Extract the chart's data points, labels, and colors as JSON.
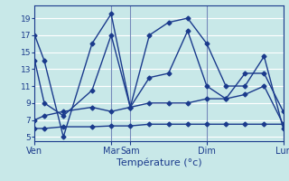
{
  "background_color": "#c8e8e8",
  "grid_color": "#ffffff",
  "line_color": "#1a3a8c",
  "xlabel": "Température (°c)",
  "yticks": [
    5,
    7,
    9,
    11,
    13,
    15,
    17,
    19
  ],
  "xtick_labels": [
    "Ven",
    "Mar",
    "Sam",
    "Dim",
    "Lun"
  ],
  "xtick_positions": [
    0,
    24,
    30,
    54,
    78
  ],
  "vline_positions": [
    0,
    24,
    30,
    54,
    78
  ],
  "series1_x": [
    0,
    3,
    9,
    18,
    24,
    30,
    36,
    42,
    48,
    54,
    60,
    66,
    72,
    78
  ],
  "series1_y": [
    17,
    14,
    5,
    16,
    19.5,
    8.5,
    17,
    18.5,
    19,
    16,
    11,
    11,
    14.5,
    6
  ],
  "series2_x": [
    0,
    3,
    9,
    18,
    24,
    30,
    36,
    42,
    48,
    54,
    60,
    66,
    72,
    78
  ],
  "series2_y": [
    14,
    9,
    7.5,
    10.5,
    17,
    8.5,
    12,
    12.5,
    17.5,
    11,
    9.5,
    12.5,
    12.5,
    8
  ],
  "series3_x": [
    0,
    3,
    9,
    18,
    24,
    30,
    36,
    42,
    48,
    54,
    60,
    66,
    72,
    78
  ],
  "series3_y": [
    7,
    7.5,
    8,
    8.5,
    8,
    8.5,
    9,
    9,
    9,
    9.5,
    9.5,
    10,
    11,
    6.5
  ],
  "series4_x": [
    0,
    3,
    9,
    18,
    24,
    30,
    36,
    42,
    48,
    54,
    60,
    66,
    72,
    78
  ],
  "series4_y": [
    6,
    6,
    6.2,
    6.2,
    6.3,
    6.3,
    6.5,
    6.5,
    6.5,
    6.5,
    6.5,
    6.5,
    6.5,
    6.5
  ],
  "ylim": [
    4.5,
    20.5
  ],
  "xlim": [
    0,
    78
  ]
}
